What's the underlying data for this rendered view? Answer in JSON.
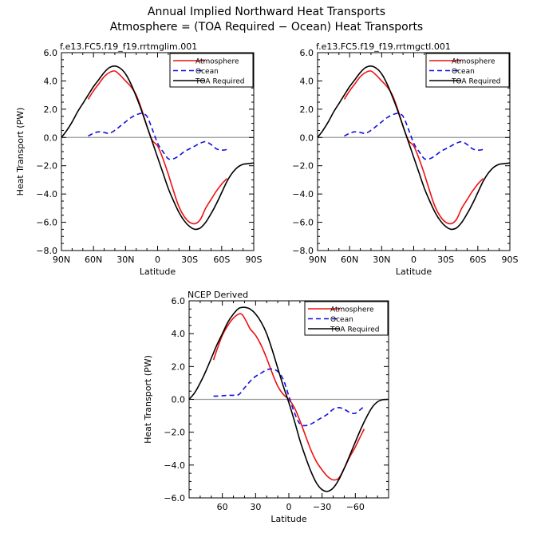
{
  "header": {
    "title_line1": "Annual Implied Northward Heat Transports",
    "title_line2": "Atmosphere = (TOA Required − Ocean) Heat Transports"
  },
  "colors": {
    "atmosphere": "#ee1111",
    "ocean": "#1111dd",
    "toa": "#000000",
    "zero_line": "#999999"
  },
  "chart_data": [
    {
      "type": "line",
      "title": "f.e13.FC5.f19_f19.rrtmglim.001",
      "xlabel": "Latitude",
      "ylabel": "Heat Transport (PW)",
      "xlim": [
        90,
        -90
      ],
      "ylim": [
        -8,
        6
      ],
      "x_ticks": [
        90,
        60,
        30,
        0,
        -30,
        -60,
        -90
      ],
      "x_tick_labels": [
        "90N",
        "60N",
        "30N",
        "0",
        "30S",
        "60S",
        "90S"
      ],
      "y_ticks": [
        -8,
        -6,
        -4,
        -2,
        0,
        2,
        4,
        6
      ],
      "y_tick_labels": [
        "−8.0",
        "−6.0",
        "−4.0",
        "−2.0",
        "0.0",
        "2.0",
        "4.0",
        "6.0"
      ],
      "legend": {
        "position": "top-right",
        "entries": [
          "Atmosphere",
          "Ocean",
          "TOA Required"
        ]
      },
      "series": [
        {
          "name": "Atmosphere",
          "color": "#ee1111",
          "dash": "solid",
          "x": [
            65,
            60,
            55,
            50,
            45,
            40,
            35,
            30,
            25,
            20,
            15,
            10,
            5,
            0,
            -5,
            -10,
            -15,
            -20,
            -25,
            -30,
            -35,
            -40,
            -45,
            -50,
            -55,
            -60,
            -65
          ],
          "y": [
            2.7,
            3.3,
            3.8,
            4.3,
            4.6,
            4.7,
            4.4,
            4.0,
            3.6,
            3.0,
            2.0,
            0.8,
            -0.2,
            -0.6,
            -1.5,
            -2.6,
            -3.8,
            -4.9,
            -5.6,
            -6.0,
            -6.1,
            -5.8,
            -5.0,
            -4.4,
            -3.8,
            -3.3,
            -2.9
          ]
        },
        {
          "name": "Ocean",
          "color": "#1111dd",
          "dash": "dashed",
          "x": [
            65,
            60,
            55,
            50,
            45,
            40,
            35,
            30,
            25,
            20,
            15,
            10,
            5,
            0,
            -5,
            -10,
            -15,
            -20,
            -25,
            -30,
            -35,
            -40,
            -45,
            -50,
            -55,
            -60,
            -65
          ],
          "y": [
            0.1,
            0.3,
            0.4,
            0.35,
            0.3,
            0.5,
            0.8,
            1.1,
            1.4,
            1.6,
            1.7,
            1.5,
            0.6,
            -0.4,
            -1.0,
            -1.5,
            -1.5,
            -1.3,
            -1.0,
            -0.8,
            -0.6,
            -0.4,
            -0.3,
            -0.5,
            -0.8,
            -0.9,
            -0.85
          ]
        },
        {
          "name": "TOA Required",
          "color": "#000000",
          "dash": "solid",
          "x": [
            90,
            85,
            80,
            75,
            70,
            65,
            60,
            55,
            50,
            45,
            40,
            35,
            30,
            25,
            20,
            15,
            10,
            5,
            0,
            -5,
            -10,
            -15,
            -20,
            -25,
            -30,
            -35,
            -40,
            -45,
            -50,
            -55,
            -60,
            -65,
            -70,
            -75,
            -80,
            -85,
            -90
          ],
          "y": [
            0,
            0.5,
            1.1,
            1.8,
            2.4,
            3.0,
            3.6,
            4.1,
            4.6,
            4.95,
            5.05,
            4.9,
            4.5,
            3.8,
            2.9,
            1.9,
            0.8,
            -0.3,
            -1.4,
            -2.5,
            -3.6,
            -4.5,
            -5.3,
            -5.9,
            -6.3,
            -6.5,
            -6.4,
            -6.0,
            -5.4,
            -4.7,
            -3.9,
            -3.1,
            -2.5,
            -2.1,
            -1.9,
            -1.85,
            -1.8
          ]
        }
      ]
    },
    {
      "type": "line",
      "title": "f.e13.FC5.f19_f19.rrtmgctl.001",
      "xlabel": "Latitude",
      "ylabel": "",
      "xlim": [
        90,
        -90
      ],
      "ylim": [
        -8,
        6
      ],
      "x_ticks": [
        90,
        60,
        30,
        0,
        -30,
        -60,
        -90
      ],
      "x_tick_labels": [
        "90N",
        "60N",
        "30N",
        "0",
        "30S",
        "60S",
        "90S"
      ],
      "y_ticks": [
        -8,
        -6,
        -4,
        -2,
        0,
        2,
        4,
        6
      ],
      "y_tick_labels": [
        "−8.0",
        "−6.0",
        "−4.0",
        "−2.0",
        "0.0",
        "2.0",
        "4.0",
        "6.0"
      ],
      "legend": {
        "position": "top-right",
        "entries": [
          "Atmosphere",
          "Ocean",
          "TOA Required"
        ]
      },
      "series": [
        {
          "name": "Atmosphere",
          "color": "#ee1111",
          "dash": "solid",
          "x": [
            65,
            60,
            55,
            50,
            45,
            40,
            35,
            30,
            25,
            20,
            15,
            10,
            5,
            0,
            -5,
            -10,
            -15,
            -20,
            -25,
            -30,
            -35,
            -40,
            -45,
            -50,
            -55,
            -60,
            -65
          ],
          "y": [
            2.7,
            3.3,
            3.8,
            4.3,
            4.6,
            4.7,
            4.4,
            4.0,
            3.6,
            3.0,
            2.0,
            0.8,
            -0.2,
            -0.6,
            -1.5,
            -2.6,
            -3.8,
            -4.9,
            -5.6,
            -6.0,
            -6.1,
            -5.8,
            -5.0,
            -4.4,
            -3.8,
            -3.3,
            -2.9
          ]
        },
        {
          "name": "Ocean",
          "color": "#1111dd",
          "dash": "dashed",
          "x": [
            65,
            60,
            55,
            50,
            45,
            40,
            35,
            30,
            25,
            20,
            15,
            10,
            5,
            0,
            -5,
            -10,
            -15,
            -20,
            -25,
            -30,
            -35,
            -40,
            -45,
            -50,
            -55,
            -60,
            -65
          ],
          "y": [
            0.1,
            0.3,
            0.4,
            0.35,
            0.3,
            0.5,
            0.8,
            1.1,
            1.4,
            1.6,
            1.7,
            1.5,
            0.6,
            -0.4,
            -1.0,
            -1.5,
            -1.5,
            -1.3,
            -1.0,
            -0.8,
            -0.6,
            -0.4,
            -0.3,
            -0.5,
            -0.8,
            -0.9,
            -0.85
          ]
        },
        {
          "name": "TOA Required",
          "color": "#000000",
          "dash": "solid",
          "x": [
            90,
            85,
            80,
            75,
            70,
            65,
            60,
            55,
            50,
            45,
            40,
            35,
            30,
            25,
            20,
            15,
            10,
            5,
            0,
            -5,
            -10,
            -15,
            -20,
            -25,
            -30,
            -35,
            -40,
            -45,
            -50,
            -55,
            -60,
            -65,
            -70,
            -75,
            -80,
            -85,
            -90
          ],
          "y": [
            0,
            0.5,
            1.1,
            1.8,
            2.4,
            3.0,
            3.6,
            4.1,
            4.6,
            4.95,
            5.05,
            4.9,
            4.5,
            3.8,
            2.9,
            1.9,
            0.8,
            -0.3,
            -1.4,
            -2.5,
            -3.6,
            -4.5,
            -5.3,
            -5.9,
            -6.3,
            -6.5,
            -6.4,
            -6.0,
            -5.4,
            -4.7,
            -3.9,
            -3.1,
            -2.5,
            -2.1,
            -1.9,
            -1.85,
            -1.8
          ]
        }
      ]
    },
    {
      "type": "line",
      "title": "NCEP Derived",
      "xlabel": "Latitude",
      "ylabel": "Heat Transport (PW)",
      "xlim": [
        90,
        -90
      ],
      "ylim": [
        -6,
        6
      ],
      "x_ticks": [
        60,
        30,
        0,
        -30,
        -60
      ],
      "x_tick_labels": [
        "60",
        "30",
        "0",
        "−30",
        "−60"
      ],
      "y_ticks": [
        -6,
        -4,
        -2,
        0,
        2,
        4,
        6
      ],
      "y_tick_labels": [
        "−6.0",
        "−4.0",
        "−2.0",
        "0.0",
        "2.0",
        "4.0",
        "6.0"
      ],
      "legend": {
        "position": "top-right",
        "entries": [
          "Atmosphere",
          "Ocean",
          "TOA Required"
        ]
      },
      "series": [
        {
          "name": "Atmosphere",
          "color": "#ee1111",
          "dash": "solid",
          "x": [
            68,
            65,
            60,
            55,
            50,
            45,
            42,
            38,
            35,
            30,
            25,
            20,
            15,
            10,
            5,
            0,
            -5,
            -10,
            -15,
            -20,
            -25,
            -30,
            -35,
            -40,
            -45,
            -50,
            -55,
            -60,
            -65,
            -68
          ],
          "y": [
            2.4,
            3.0,
            3.9,
            4.5,
            4.95,
            5.2,
            5.15,
            4.7,
            4.3,
            3.9,
            3.3,
            2.5,
            1.6,
            0.8,
            0.3,
            0.0,
            -0.5,
            -1.3,
            -2.2,
            -3.1,
            -3.8,
            -4.3,
            -4.7,
            -4.9,
            -4.8,
            -4.2,
            -3.5,
            -2.9,
            -2.2,
            -1.8
          ]
        },
        {
          "name": "Ocean",
          "color": "#1111dd",
          "dash": "dashed",
          "x": [
            68,
            65,
            60,
            55,
            50,
            45,
            40,
            35,
            30,
            25,
            20,
            15,
            10,
            5,
            0,
            -5,
            -10,
            -15,
            -20,
            -25,
            -30,
            -35,
            -40,
            -45,
            -50,
            -55,
            -60,
            -65,
            -68
          ],
          "y": [
            0.2,
            0.2,
            0.22,
            0.25,
            0.25,
            0.3,
            0.7,
            1.1,
            1.4,
            1.6,
            1.8,
            1.85,
            1.7,
            1.2,
            0.2,
            -0.8,
            -1.5,
            -1.6,
            -1.5,
            -1.3,
            -1.1,
            -0.9,
            -0.6,
            -0.5,
            -0.6,
            -0.8,
            -0.85,
            -0.6,
            -0.4
          ]
        },
        {
          "name": "TOA Required",
          "color": "#000000",
          "dash": "solid",
          "x": [
            90,
            85,
            80,
            75,
            70,
            65,
            60,
            55,
            50,
            45,
            40,
            35,
            30,
            25,
            20,
            15,
            10,
            5,
            0,
            -5,
            -10,
            -15,
            -20,
            -25,
            -30,
            -35,
            -40,
            -45,
            -50,
            -55,
            -60,
            -65,
            -70,
            -75,
            -80,
            -85,
            -90
          ],
          "y": [
            0,
            0.4,
            1.0,
            1.7,
            2.5,
            3.3,
            4.0,
            4.7,
            5.2,
            5.55,
            5.6,
            5.5,
            5.2,
            4.7,
            4.0,
            3.0,
            1.9,
            0.8,
            -0.2,
            -1.3,
            -2.5,
            -3.5,
            -4.4,
            -5.1,
            -5.5,
            -5.6,
            -5.4,
            -4.9,
            -4.2,
            -3.4,
            -2.6,
            -1.8,
            -1.1,
            -0.5,
            -0.15,
            -0.02,
            0
          ]
        }
      ]
    }
  ]
}
